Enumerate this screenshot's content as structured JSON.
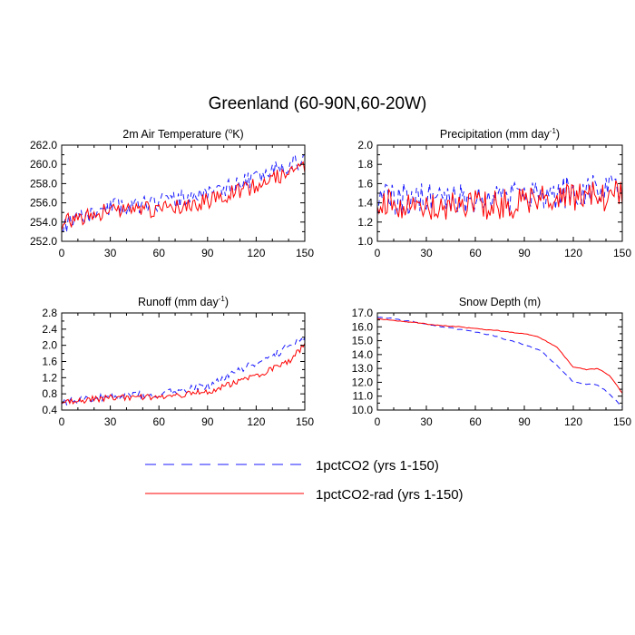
{
  "title": "Greenland (60-90N,60-20W)",
  "legend": [
    {
      "label": "1pctCO2 (yrs 1-150)",
      "color": "#1a1aff",
      "dash": "dashed"
    },
    {
      "label": "1pctCO2-rad (yrs 1-150)",
      "color": "#ff0000",
      "dash": "solid"
    }
  ],
  "chart_data": [
    {
      "type": "line",
      "title": "2m Air Temperature (°K)",
      "title_main": "2m Air Temperature (",
      "title_sup": "o",
      "title_tail": "K)",
      "xlim": [
        0,
        150
      ],
      "ylim": [
        252.0,
        262.0
      ],
      "xticks": [
        0,
        30,
        60,
        90,
        120,
        150
      ],
      "yticks": [
        252.0,
        254.0,
        256.0,
        258.0,
        260.0,
        262.0
      ],
      "yfmt": 1,
      "series": [
        {
          "name": "1pctCO2 (yrs 1-150)",
          "kind": "noisy",
          "trend": [
            [
              0,
              253.6
            ],
            [
              30,
              255.5
            ],
            [
              60,
              256.0
            ],
            [
              90,
              257.0
            ],
            [
              120,
              258.6
            ],
            [
              150,
              260.6
            ]
          ],
          "amp": 0.9,
          "seed": 11
        },
        {
          "name": "1pctCO2-rad (yrs 1-150)",
          "kind": "noisy",
          "trend": [
            [
              0,
              253.9
            ],
            [
              30,
              255.2
            ],
            [
              60,
              255.3
            ],
            [
              90,
              256.2
            ],
            [
              120,
              257.8
            ],
            [
              150,
              259.8
            ]
          ],
          "amp": 0.85,
          "seed": 23
        }
      ]
    },
    {
      "type": "line",
      "title": "Precipitation (mm day-1)",
      "title_main": "Precipitation (mm day",
      "title_sup": "-1",
      "title_tail": ")",
      "xlim": [
        0,
        150
      ],
      "ylim": [
        1.0,
        2.0
      ],
      "xticks": [
        0,
        30,
        60,
        90,
        120,
        150
      ],
      "yticks": [
        1.0,
        1.2,
        1.4,
        1.6,
        1.8,
        2.0
      ],
      "yfmt": 1,
      "series": [
        {
          "name": "1pctCO2 (yrs 1-150)",
          "kind": "noisy",
          "trend": [
            [
              0,
              1.42
            ],
            [
              30,
              1.45
            ],
            [
              60,
              1.45
            ],
            [
              90,
              1.46
            ],
            [
              120,
              1.52
            ],
            [
              150,
              1.58
            ]
          ],
          "amp": 0.17,
          "seed": 37
        },
        {
          "name": "1pctCO2-rad (yrs 1-150)",
          "kind": "noisy",
          "trend": [
            [
              0,
              1.4
            ],
            [
              30,
              1.38
            ],
            [
              60,
              1.37
            ],
            [
              90,
              1.4
            ],
            [
              120,
              1.45
            ],
            [
              150,
              1.48
            ]
          ],
          "amp": 0.16,
          "seed": 41
        }
      ]
    },
    {
      "type": "line",
      "title": "Runoff (mm day-1)",
      "title_main": "Runoff (mm day",
      "title_sup": "-1",
      "title_tail": ")",
      "xlim": [
        0,
        150
      ],
      "ylim": [
        0.4,
        2.8
      ],
      "xticks": [
        0,
        30,
        60,
        90,
        120,
        150
      ],
      "yticks": [
        0.4,
        0.8,
        1.2,
        1.6,
        2.0,
        2.4,
        2.8
      ],
      "yfmt": 1,
      "series": [
        {
          "name": "1pctCO2 (yrs 1-150)",
          "kind": "noisy",
          "trend": [
            [
              0,
              0.6
            ],
            [
              30,
              0.72
            ],
            [
              60,
              0.8
            ],
            [
              90,
              1.0
            ],
            [
              110,
              1.4
            ],
            [
              130,
              1.7
            ],
            [
              140,
              2.0
            ],
            [
              150,
              2.2
            ]
          ],
          "amp": 0.09,
          "seed": 53
        },
        {
          "name": "1pctCO2-rad (yrs 1-150)",
          "kind": "noisy",
          "trend": [
            [
              0,
              0.6
            ],
            [
              30,
              0.7
            ],
            [
              60,
              0.72
            ],
            [
              90,
              0.85
            ],
            [
              110,
              1.1
            ],
            [
              130,
              1.4
            ],
            [
              140,
              1.6
            ],
            [
              147,
              1.9
            ],
            [
              150,
              2.0
            ]
          ],
          "amp": 0.08,
          "seed": 67
        }
      ]
    },
    {
      "type": "line",
      "title": "Snow Depth (m)",
      "title_main": "Snow Depth (m)",
      "title_sup": "",
      "title_tail": "",
      "xlim": [
        0,
        150
      ],
      "ylim": [
        10.0,
        17.0
      ],
      "xticks": [
        0,
        30,
        60,
        90,
        120,
        150
      ],
      "yticks": [
        10.0,
        11.0,
        12.0,
        13.0,
        14.0,
        15.0,
        16.0,
        17.0
      ],
      "yfmt": 1,
      "series": [
        {
          "name": "1pctCO2 (yrs 1-150)",
          "kind": "smooth",
          "trend": [
            [
              0,
              16.7
            ],
            [
              10,
              16.6
            ],
            [
              30,
              16.2
            ],
            [
              50,
              15.8
            ],
            [
              70,
              15.4
            ],
            [
              90,
              14.7
            ],
            [
              100,
              14.3
            ],
            [
              110,
              13.2
            ],
            [
              120,
              12.0
            ],
            [
              135,
              11.8
            ],
            [
              142,
              11.2
            ],
            [
              150,
              10.2
            ]
          ],
          "amp": 0.06,
          "seed": 71
        },
        {
          "name": "1pctCO2-rad (yrs 1-150)",
          "kind": "smooth",
          "trend": [
            [
              0,
              16.6
            ],
            [
              30,
              16.2
            ],
            [
              60,
              15.9
            ],
            [
              90,
              15.5
            ],
            [
              100,
              15.2
            ],
            [
              110,
              14.5
            ],
            [
              120,
              13.1
            ],
            [
              128,
              12.9
            ],
            [
              135,
              13.0
            ],
            [
              142,
              12.5
            ],
            [
              150,
              11.2
            ]
          ],
          "amp": 0.05,
          "seed": 83
        }
      ]
    }
  ]
}
